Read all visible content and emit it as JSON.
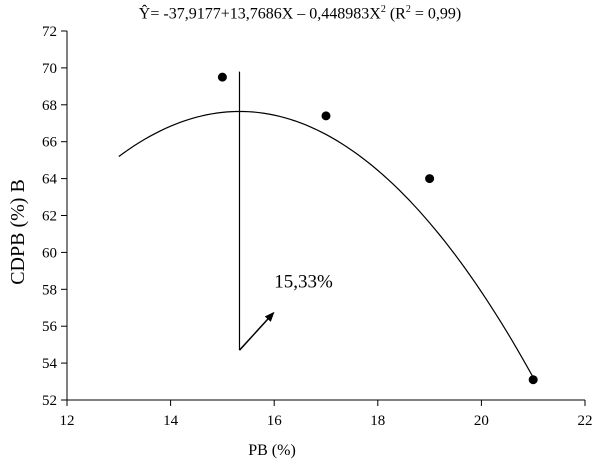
{
  "chart_data": {
    "type": "scatter",
    "title": {
      "prefix": "Ŷ= -37,9177+13,7686X – 0,448983X",
      "exponent": "2",
      "r_prefix": " (R",
      "r_exponent": "2",
      "r_suffix": " = 0,99)"
    },
    "xlabel": "PB (%)",
    "ylabel": "CDPB (%)  B",
    "xlim": [
      12,
      22
    ],
    "ylim": [
      52,
      72
    ],
    "xticks": [
      "12",
      "14",
      "16",
      "18",
      "20",
      "22"
    ],
    "yticks": [
      "52",
      "54",
      "56",
      "58",
      "60",
      "62",
      "64",
      "66",
      "68",
      "70",
      "72"
    ],
    "points": [
      {
        "x": 15,
        "y": 69.5
      },
      {
        "x": 17,
        "y": 67.4
      },
      {
        "x": 19,
        "y": 64.0
      },
      {
        "x": 21,
        "y": 53.1
      }
    ],
    "curve": {
      "intercept": -37.9177,
      "b1": 13.7686,
      "b2": -0.448983,
      "x_from": 13,
      "x_to": 21
    },
    "optimum_line": {
      "x": 15.33,
      "y_top": 69.8,
      "y_bottom": 54.7
    },
    "annotation": {
      "text": "15,33%",
      "x": 16.0,
      "y": 58.1
    },
    "arrow": {
      "x_from": 15.33,
      "y_from": 54.7,
      "x_to": 15.98,
      "y_to": 56.7
    },
    "grid": false,
    "legend": "none"
  }
}
